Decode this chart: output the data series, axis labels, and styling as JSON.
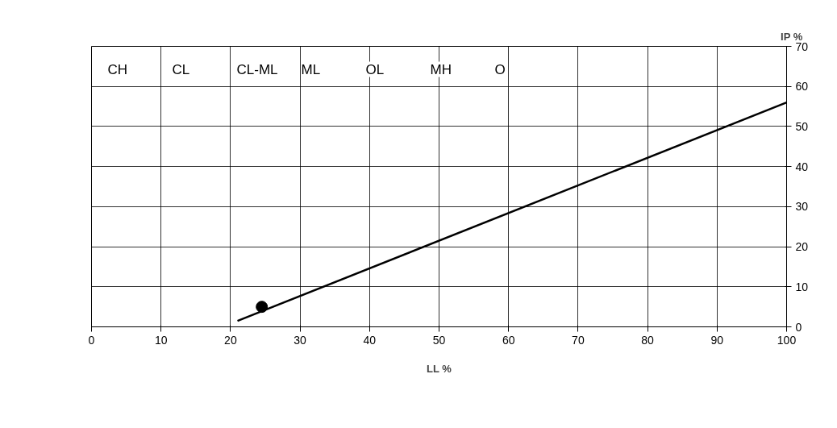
{
  "chart_data": {
    "type": "line",
    "xlabel": "LL %",
    "ylabel": "IP %",
    "xlim": [
      0,
      100
    ],
    "xticks": [
      0,
      10,
      20,
      30,
      40,
      50,
      60,
      70,
      80,
      90,
      100
    ],
    "ylim": [
      0,
      70
    ],
    "yticks": [
      0,
      10,
      20,
      30,
      40,
      50,
      60,
      70
    ],
    "grid": true,
    "line_style": "solid",
    "series": [
      {
        "color": "#000000",
        "x": [
          21,
          100
        ],
        "values": [
          1.5,
          56
        ]
      },
      {
        "type": "scatter",
        "color": "#000000",
        "x": [
          24.5
        ],
        "values": [
          5
        ],
        "marker": "circle"
      }
    ],
    "annotations": [
      "CH",
      "CL",
      "CL-ML",
      "ML",
      "OL",
      "MH",
      "O"
    ]
  }
}
